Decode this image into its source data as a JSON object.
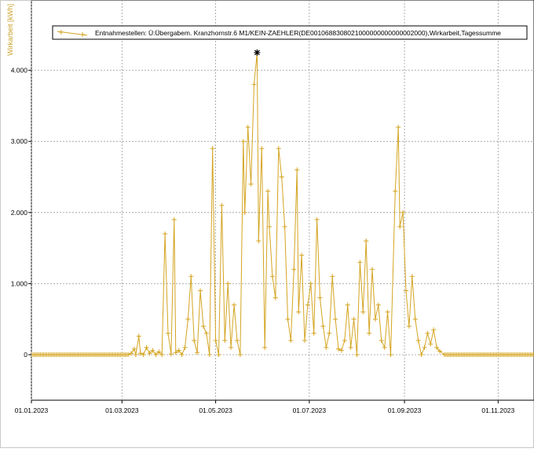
{
  "chart_data": {
    "type": "line",
    "ylabel": "Wirkarbeit [kWh]",
    "xlabel": "",
    "legend_position": "top-left",
    "grid": true,
    "series_color": "#d4a420",
    "marker": "plus",
    "peak_marker": "asterisk",
    "x_start": "01.01.2023",
    "x_end": "31.12.2023",
    "xlim": [
      "01.01.2023",
      "01.12.2023"
    ],
    "ylim": [
      -600,
      4800
    ],
    "y_ticks": [
      0,
      1000,
      2000,
      3000,
      4000
    ],
    "y_tick_labels": [
      "0",
      "1.000",
      "2.000",
      "3.000",
      "4.000"
    ],
    "x_ticks": [
      "01.01.2023",
      "01.03.2023",
      "01.05.2023",
      "01.07.2023",
      "01.09.2023",
      "01.11.2023"
    ],
    "series": [
      {
        "name": "Entnahmestellen: Ü:Übergabem. Kranzhornstr.6  M1/KEIN-ZAEHLER(DE0010688308021000000000000002000),Wirkarbeit,Tagessumme",
        "points": [
          [
            "05.03.2023",
            0
          ],
          [
            "07.03.2023",
            20
          ],
          [
            "09.03.2023",
            80
          ],
          [
            "10.03.2023",
            0
          ],
          [
            "12.03.2023",
            260
          ],
          [
            "13.03.2023",
            20
          ],
          [
            "15.03.2023",
            0
          ],
          [
            "17.03.2023",
            100
          ],
          [
            "19.03.2023",
            20
          ],
          [
            "21.03.2023",
            60
          ],
          [
            "23.03.2023",
            0
          ],
          [
            "25.03.2023",
            40
          ],
          [
            "27.03.2023",
            0
          ],
          [
            "29.03.2023",
            1700
          ],
          [
            "31.03.2023",
            300
          ],
          [
            "02.04.2023",
            10
          ],
          [
            "04.04.2023",
            1900
          ],
          [
            "05.04.2023",
            30
          ],
          [
            "07.04.2023",
            60
          ],
          [
            "09.04.2023",
            0
          ],
          [
            "11.04.2023",
            100
          ],
          [
            "13.04.2023",
            500
          ],
          [
            "15.04.2023",
            1100
          ],
          [
            "17.04.2023",
            200
          ],
          [
            "19.04.2023",
            30
          ],
          [
            "21.04.2023",
            900
          ],
          [
            "23.04.2023",
            400
          ],
          [
            "25.04.2023",
            300
          ],
          [
            "27.04.2023",
            0
          ],
          [
            "29.04.2023",
            2900
          ],
          [
            "01.05.2023",
            200
          ],
          [
            "03.05.2023",
            0
          ],
          [
            "05.05.2023",
            2100
          ],
          [
            "07.05.2023",
            200
          ],
          [
            "09.05.2023",
            1000
          ],
          [
            "11.05.2023",
            100
          ],
          [
            "13.05.2023",
            700
          ],
          [
            "15.05.2023",
            200
          ],
          [
            "17.05.2023",
            0
          ],
          [
            "19.05.2023",
            3000
          ],
          [
            "20.05.2023",
            2000
          ],
          [
            "22.05.2023",
            3200
          ],
          [
            "24.05.2023",
            2400
          ],
          [
            "26.05.2023",
            3800
          ],
          [
            "28.05.2023",
            4250
          ],
          [
            "29.05.2023",
            1600
          ],
          [
            "31.05.2023",
            2900
          ],
          [
            "02.06.2023",
            100
          ],
          [
            "04.06.2023",
            2300
          ],
          [
            "05.06.2023",
            1800
          ],
          [
            "07.06.2023",
            1100
          ],
          [
            "09.06.2023",
            800
          ],
          [
            "11.06.2023",
            2900
          ],
          [
            "13.06.2023",
            2500
          ],
          [
            "15.06.2023",
            1800
          ],
          [
            "17.06.2023",
            500
          ],
          [
            "19.06.2023",
            200
          ],
          [
            "21.06.2023",
            1200
          ],
          [
            "23.06.2023",
            2600
          ],
          [
            "24.06.2023",
            600
          ],
          [
            "26.06.2023",
            1400
          ],
          [
            "28.06.2023",
            200
          ],
          [
            "30.06.2023",
            700
          ],
          [
            "02.07.2023",
            1000
          ],
          [
            "04.07.2023",
            300
          ],
          [
            "06.07.2023",
            1900
          ],
          [
            "08.07.2023",
            800
          ],
          [
            "10.07.2023",
            400
          ],
          [
            "12.07.2023",
            100
          ],
          [
            "14.07.2023",
            300
          ],
          [
            "16.07.2023",
            1100
          ],
          [
            "18.07.2023",
            500
          ],
          [
            "20.07.2023",
            80
          ],
          [
            "22.07.2023",
            60
          ],
          [
            "24.07.2023",
            200
          ],
          [
            "26.07.2023",
            700
          ],
          [
            "28.07.2023",
            100
          ],
          [
            "30.07.2023",
            500
          ],
          [
            "01.08.2023",
            0
          ],
          [
            "03.08.2023",
            1300
          ],
          [
            "05.08.2023",
            600
          ],
          [
            "07.08.2023",
            1600
          ],
          [
            "09.08.2023",
            300
          ],
          [
            "11.08.2023",
            1200
          ],
          [
            "13.08.2023",
            500
          ],
          [
            "15.08.2023",
            700
          ],
          [
            "17.08.2023",
            200
          ],
          [
            "19.08.2023",
            100
          ],
          [
            "21.08.2023",
            600
          ],
          [
            "23.08.2023",
            0
          ],
          [
            "26.08.2023",
            2300
          ],
          [
            "28.08.2023",
            3200
          ],
          [
            "29.08.2023",
            1800
          ],
          [
            "31.08.2023",
            2000
          ],
          [
            "02.09.2023",
            900
          ],
          [
            "04.09.2023",
            400
          ],
          [
            "06.09.2023",
            1100
          ],
          [
            "08.09.2023",
            500
          ],
          [
            "10.09.2023",
            200
          ],
          [
            "12.09.2023",
            0
          ],
          [
            "14.09.2023",
            100
          ],
          [
            "16.09.2023",
            300
          ],
          [
            "18.09.2023",
            150
          ],
          [
            "20.09.2023",
            350
          ],
          [
            "22.09.2023",
            100
          ],
          [
            "24.09.2023",
            50
          ],
          [
            "27.09.2023",
            0
          ]
        ]
      }
    ]
  }
}
